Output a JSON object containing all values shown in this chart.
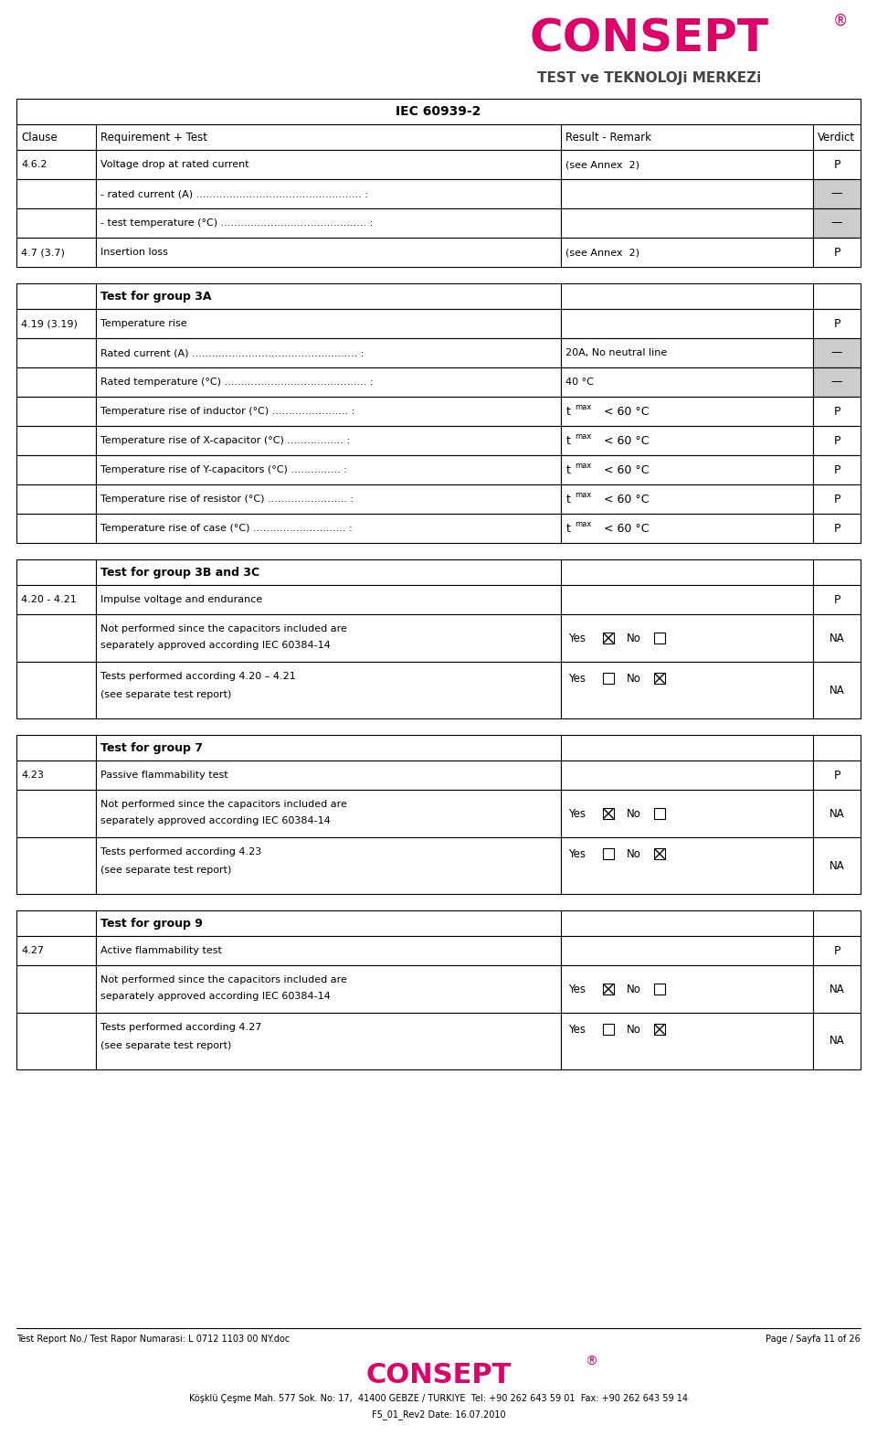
{
  "title": "IEC 60939-2",
  "header": [
    "Clause",
    "Requirement + Test",
    "Result - Remark",
    "Verdict"
  ],
  "logo_text": "CONSEPT",
  "logo_sub": "TEST ve TEKNOLOJi MERKEZi",
  "footer_left": "Test Report No./ Test Rapor Numarasi: L 0712 1103 00 NY.doc",
  "footer_right": "Page / Sayfa 11 of 26",
  "footer_bottom": "Köşklü Çeşme Mah. 577 Sok. No: 17,  41400 GEBZE / TURKIYE  Tel: +90 262 643 59 01  Fax: +90 262 643 59 14",
  "footer_bottom2": "F5_01_Rev2 Date: 16.07.2010",
  "bg_color": "#ffffff",
  "gray_bg": "#cccccc",
  "logo_color": "#e0006a",
  "rows": [
    {
      "clause": "4.6.2",
      "req": "Voltage drop at rated current",
      "result": "(see Annex  2)",
      "verdict": "P",
      "type": "normal"
    },
    {
      "clause": "",
      "req": "- rated current (A) .................................................. :",
      "result": "",
      "verdict": "—",
      "type": "gray"
    },
    {
      "clause": "",
      "req": "- test temperature (°C) ............................................ :",
      "result": "",
      "verdict": "—",
      "type": "gray"
    },
    {
      "clause": "4.7 (3.7)",
      "req": "Insertion loss",
      "result": "(see Annex  2)",
      "verdict": "P",
      "type": "normal"
    }
  ],
  "group3a_rows": [
    {
      "clause": "4.19 (3.19)",
      "req": "Temperature rise",
      "result": "",
      "verdict": "P",
      "type": "normal"
    },
    {
      "clause": "",
      "req": "Rated current (A) .................................................. :",
      "result": "20A, No neutral line",
      "verdict": "—",
      "type": "gray"
    },
    {
      "clause": "",
      "req": "Rated temperature (°C) ........................................... :",
      "result": "40 °C",
      "verdict": "—",
      "type": "gray"
    },
    {
      "clause": "",
      "req": "Temperature rise of inductor (°C) ....................... :",
      "result": "tmax",
      "verdict": "P",
      "type": "tmax"
    },
    {
      "clause": "",
      "req": "Temperature rise of X-capacitor (°C) ................. :",
      "result": "tmax",
      "verdict": "P",
      "type": "tmax"
    },
    {
      "clause": "",
      "req": "Temperature rise of Y-capacitors (°C) ............... :",
      "result": "tmax",
      "verdict": "P",
      "type": "tmax"
    },
    {
      "clause": "",
      "req": "Temperature rise of resistor (°C) ........................ :",
      "result": "tmax",
      "verdict": "P",
      "type": "tmax"
    },
    {
      "clause": "",
      "req": "Temperature rise of case (°C) ............................ :",
      "result": "tmax",
      "verdict": "P",
      "type": "tmax"
    }
  ]
}
